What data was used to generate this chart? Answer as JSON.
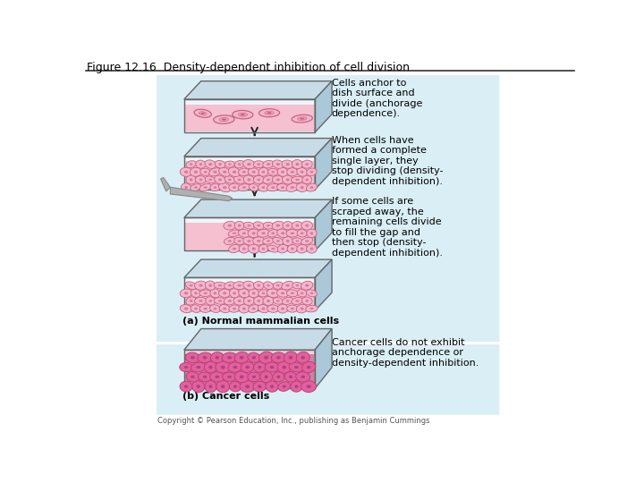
{
  "title": "Figure 12.16  Density-dependent inhibition of cell division",
  "copyright": "Copyright © Pearson Education, Inc., publishing as Benjamin Cummings",
  "bg_color": "#ffffff",
  "panel_a_bg": "#daeef5",
  "panel_b_bg": "#daeef5",
  "dish_outline": "#666666",
  "cell_color_light": "#f0b8cc",
  "cell_color_dark": "#c84878",
  "cell_border": "#cc6080",
  "arrow_color": "#222222",
  "label_a": "(a) Normal mammalian cells",
  "label_b": "(b) Cancer cells",
  "text1": "Cells anchor to\ndish surface and\ndivide (anchorage\ndependence).",
  "text2": "When cells have\nformed a complete\nsingle layer, they\nstop dividing (density-\ndependent inhibition).",
  "text3": "If some cells are\nscraped away, the\nremaining cells divide\nto fill the gap and\nthen stop (density-\ndependent inhibition).",
  "text4": "Cancer cells do not exhibit\nanchorage dependence or\ndensity-dependent inhibition.",
  "cancer_cell_color": "#e060a0",
  "cancer_cell_dark": "#903060",
  "cancer_cell_border": "#c04070",
  "dish_top_color": "#c8dce8",
  "dish_right_color": "#aac8d8",
  "dish_interior": "#e8f4f8",
  "liq_normal": "#f5c0d0",
  "liq_cancer": "#d080a8"
}
